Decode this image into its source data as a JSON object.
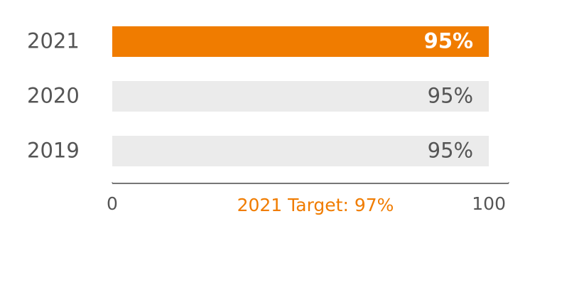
{
  "chart_data": {
    "type": "bar",
    "orientation": "horizontal",
    "categories": [
      "2021",
      "2020",
      "2019"
    ],
    "values": [
      95,
      95,
      95
    ],
    "value_labels": [
      "95%",
      "95%",
      "95%"
    ],
    "colors": [
      "#f07c00",
      "#ebebeb",
      "#ebebeb"
    ],
    "xlim": [
      0,
      100
    ],
    "xticks": [
      0,
      100
    ],
    "annotation": "2021 Target: 97%"
  }
}
